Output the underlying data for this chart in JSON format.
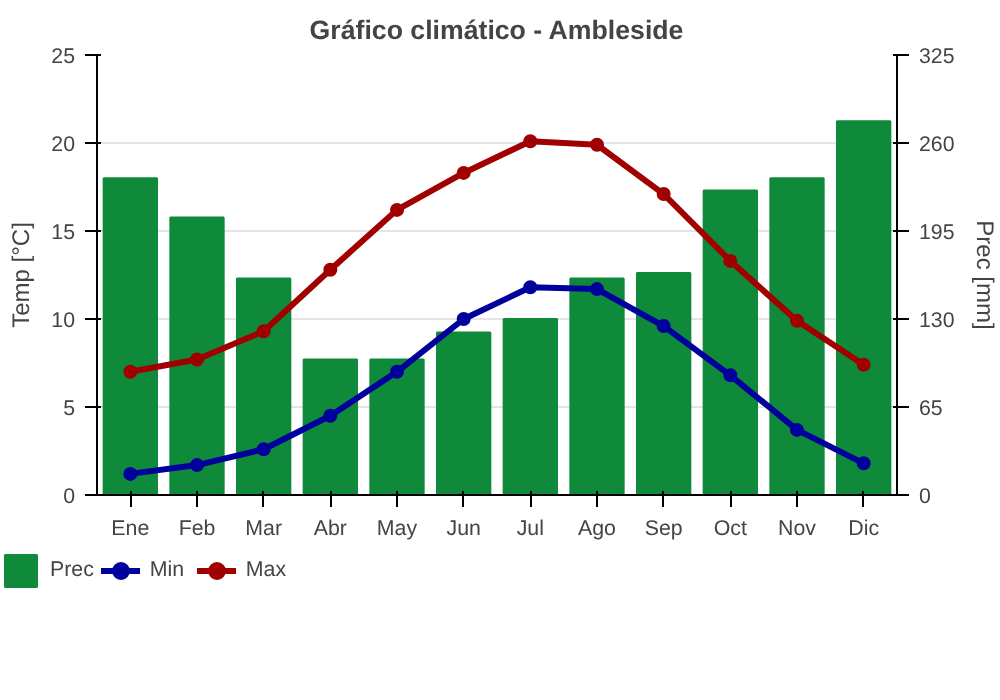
{
  "chart_data": {
    "type": "bar",
    "title": "Gráfico climático - Ambleside",
    "ylabel": "Temp [°C]",
    "y2label": "Prec [mm]",
    "categories": [
      "Ene",
      "Feb",
      "Mar",
      "Abr",
      "May",
      "Jun",
      "Jul",
      "Ago",
      "Sep",
      "Oct",
      "Nov",
      "Dic"
    ],
    "series": [
      {
        "name": "Prec",
        "axis": "y2",
        "color": "#0e8a3a",
        "values": [
          234,
          205,
          160,
          100,
          100,
          120,
          130,
          160,
          164,
          225,
          234,
          276
        ]
      },
      {
        "name": "Min",
        "type": "line",
        "color": "#00009c",
        "marker": "circle",
        "values": [
          1.2,
          1.7,
          2.6,
          4.5,
          7.0,
          10.0,
          11.8,
          11.7,
          9.6,
          6.8,
          3.7,
          1.8
        ]
      },
      {
        "name": "Max",
        "type": "line",
        "color": "#a00000",
        "marker": "circle",
        "values": [
          7.0,
          7.7,
          9.3,
          12.8,
          16.2,
          18.3,
          20.1,
          19.9,
          17.1,
          13.3,
          9.9,
          7.4
        ]
      }
    ],
    "ylim": [
      0,
      25
    ],
    "yticks": [
      0,
      5,
      10,
      15,
      20,
      25
    ],
    "y2lim": [
      0,
      325
    ],
    "y2ticks": [
      0,
      65,
      130,
      195,
      260,
      325
    ],
    "grid": "y",
    "legend": "bottom"
  }
}
